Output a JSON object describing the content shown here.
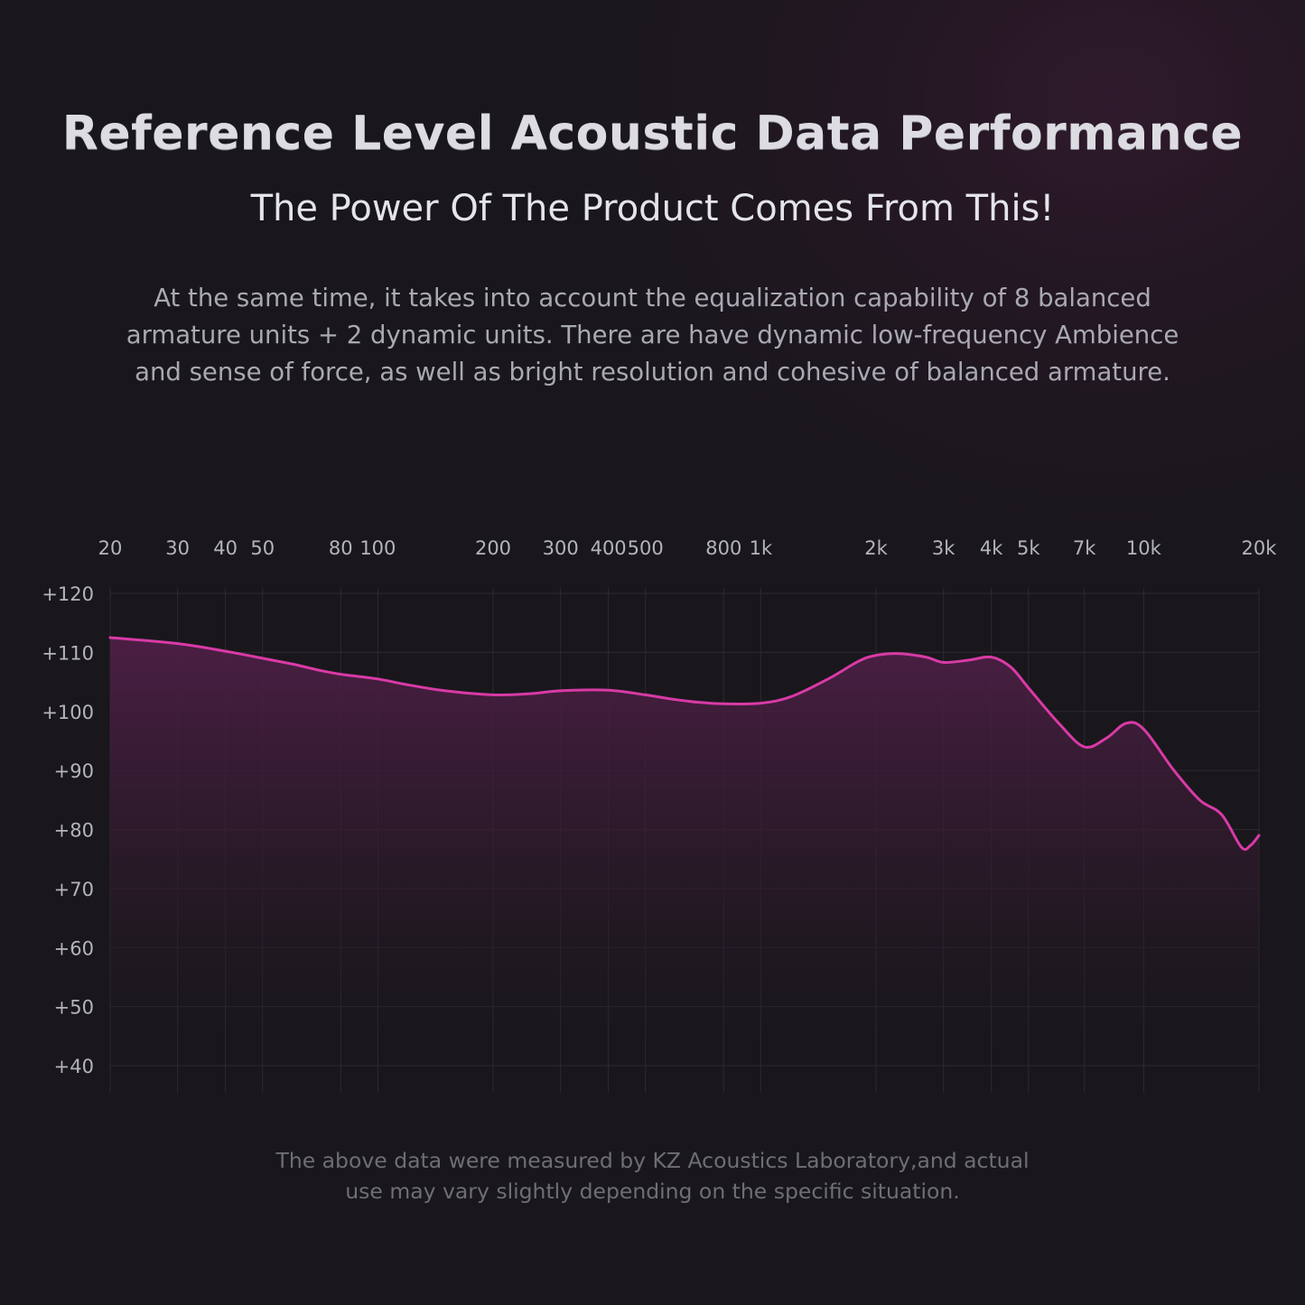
{
  "header": {
    "title": "Reference Level Acoustic Data Performance",
    "subtitle": "The Power Of The Product Comes From This!"
  },
  "description": [
    "At the same time, it takes into account the equalization capability of 8 balanced",
    "armature units + 2 dynamic units. There are have dynamic low-frequency Ambience",
    "and sense of force, as well as bright resolution and cohesive of balanced armature."
  ],
  "footnote": [
    "The above data were measured by KZ Acoustics Laboratory,and actual",
    "use may vary slightly depending on the specific situation."
  ],
  "colors": {
    "curve": "#d93aa6",
    "fill_top": "#4a1d42",
    "grid": "#2c2a31"
  },
  "chart_data": {
    "type": "line",
    "x_scale": "log",
    "grid": true,
    "xlim": [
      20,
      20000
    ],
    "ylim": [
      40,
      120
    ],
    "x_ticks": [
      {
        "value": 20,
        "label": "20"
      },
      {
        "value": 30,
        "label": "30"
      },
      {
        "value": 40,
        "label": "40"
      },
      {
        "value": 50,
        "label": "50"
      },
      {
        "value": 80,
        "label": "80"
      },
      {
        "value": 100,
        "label": "100"
      },
      {
        "value": 200,
        "label": "200"
      },
      {
        "value": 300,
        "label": "300"
      },
      {
        "value": 400,
        "label": "400"
      },
      {
        "value": 500,
        "label": "500"
      },
      {
        "value": 800,
        "label": "800"
      },
      {
        "value": 1000,
        "label": "1k"
      },
      {
        "value": 2000,
        "label": "2k"
      },
      {
        "value": 3000,
        "label": "3k"
      },
      {
        "value": 4000,
        "label": "4k"
      },
      {
        "value": 5000,
        "label": "5k"
      },
      {
        "value": 7000,
        "label": "7k"
      },
      {
        "value": 10000,
        "label": "10k"
      },
      {
        "value": 20000,
        "label": "20k"
      }
    ],
    "y_ticks": [
      {
        "value": 120,
        "label": "+120"
      },
      {
        "value": 110,
        "label": "+110"
      },
      {
        "value": 100,
        "label": "+100"
      },
      {
        "value": 90,
        "label": "+90"
      },
      {
        "value": 80,
        "label": "+80"
      },
      {
        "value": 70,
        "label": "+70"
      },
      {
        "value": 60,
        "label": "+60"
      },
      {
        "value": 50,
        "label": "+50"
      },
      {
        "value": 40,
        "label": "+40"
      }
    ],
    "series": [
      {
        "points": [
          [
            20,
            112.5
          ],
          [
            30,
            111.5
          ],
          [
            40,
            110.2
          ],
          [
            50,
            109.0
          ],
          [
            60,
            108.0
          ],
          [
            70,
            107.0
          ],
          [
            80,
            106.3
          ],
          [
            100,
            105.5
          ],
          [
            120,
            104.5
          ],
          [
            150,
            103.5
          ],
          [
            200,
            102.8
          ],
          [
            250,
            103.0
          ],
          [
            300,
            103.5
          ],
          [
            400,
            103.6
          ],
          [
            500,
            102.8
          ],
          [
            600,
            102.0
          ],
          [
            700,
            101.5
          ],
          [
            800,
            101.3
          ],
          [
            1000,
            101.4
          ],
          [
            1200,
            102.5
          ],
          [
            1500,
            105.5
          ],
          [
            1800,
            108.5
          ],
          [
            2000,
            109.5
          ],
          [
            2300,
            109.8
          ],
          [
            2700,
            109.2
          ],
          [
            3000,
            108.3
          ],
          [
            3500,
            108.7
          ],
          [
            4000,
            109.2
          ],
          [
            4500,
            107.5
          ],
          [
            5000,
            104.0
          ],
          [
            6000,
            98.0
          ],
          [
            7000,
            94.0
          ],
          [
            8000,
            95.5
          ],
          [
            9000,
            98.0
          ],
          [
            10000,
            97.0
          ],
          [
            12000,
            90.0
          ],
          [
            14000,
            85.0
          ],
          [
            16000,
            82.5
          ],
          [
            18000,
            77.0
          ],
          [
            19000,
            77.3
          ],
          [
            20000,
            79.0
          ]
        ]
      }
    ]
  }
}
